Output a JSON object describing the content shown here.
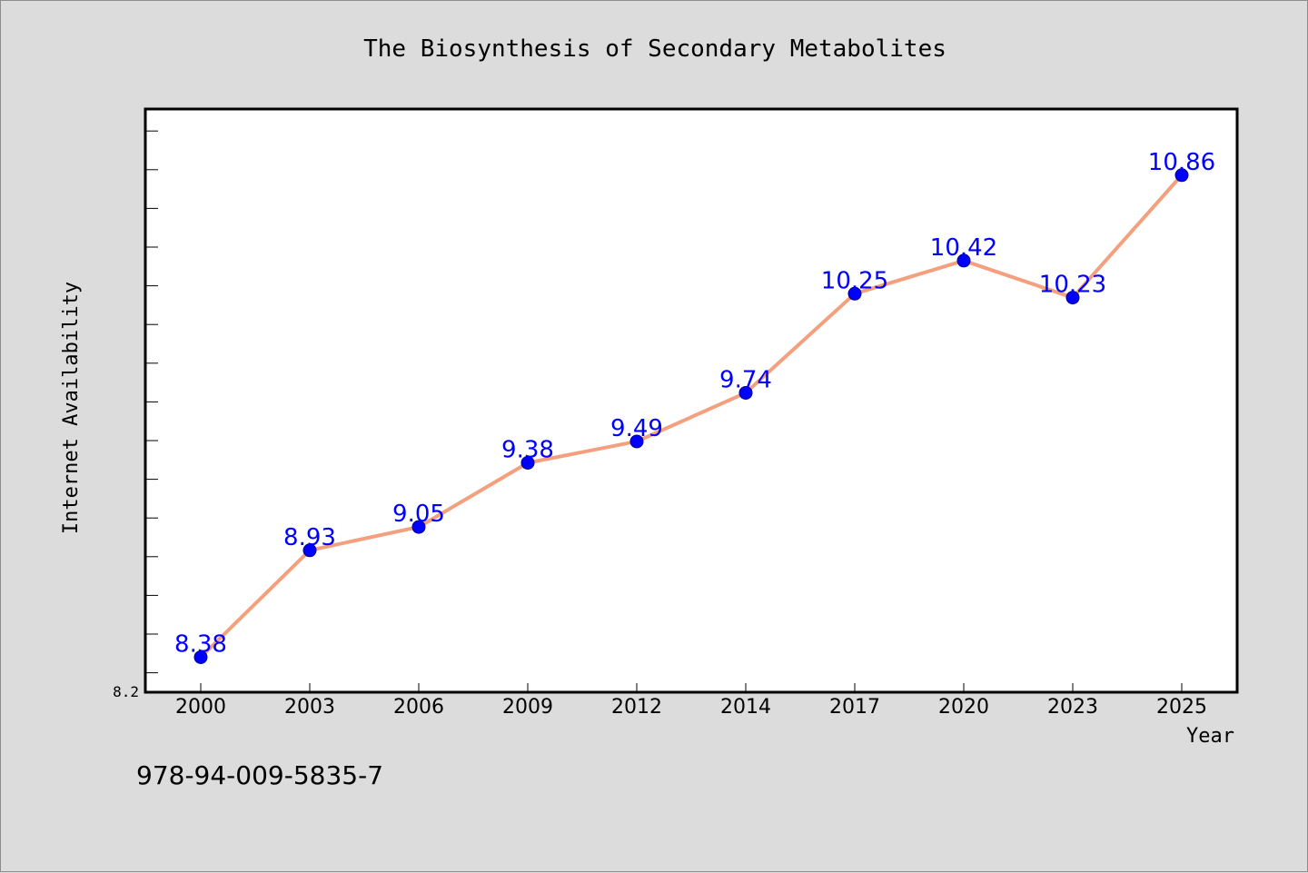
{
  "caption": "978-94-009-5835-7",
  "chart_data": {
    "type": "line",
    "title": "The Biosynthesis of Secondary Metabolites",
    "xlabel": "Year",
    "ylabel": "Internet Availability",
    "categories": [
      "2000",
      "2003",
      "2006",
      "2009",
      "2012",
      "2014",
      "2017",
      "2020",
      "2023",
      "2025"
    ],
    "series": [
      {
        "values": [
          8.38,
          8.93,
          9.05,
          9.38,
          9.49,
          9.74,
          10.25,
          10.42,
          10.23,
          10.86
        ],
        "labels": [
          "8.38",
          "8.93",
          "9.05",
          "9.38",
          "9.49",
          "9.74",
          "10.25",
          "10.42",
          "10.23",
          "10.86"
        ]
      }
    ],
    "ylim": [
      8.2,
      11.2
    ],
    "ytick_labels": [
      "8.2"
    ],
    "grid": false,
    "legend": "none",
    "colors": {
      "line": "#f4a07e",
      "marker": "#0000ff",
      "data_label": "#0000ff",
      "plot_background": "#ffffff",
      "figure_background": "#dcdcdc"
    }
  }
}
